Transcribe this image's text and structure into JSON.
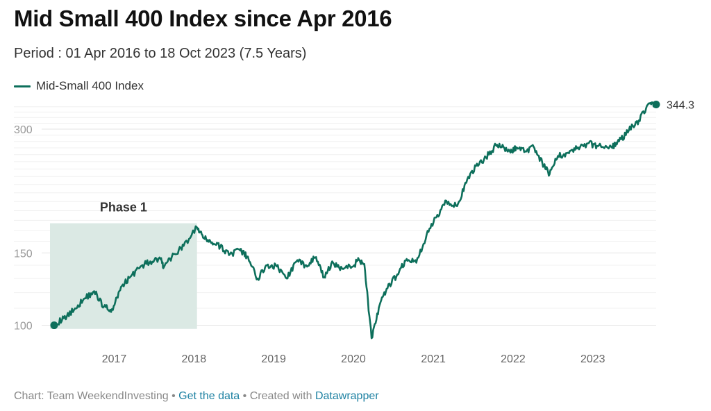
{
  "header": {
    "title": "Mid Small 400 Index since Apr 2016",
    "subtitle": "Period : 01 Apr 2016 to 18 Oct 2023 (7.5 Years)"
  },
  "footer": {
    "prefix": "Chart: Team WeekendInvesting",
    "sep1": " • ",
    "data_link": "Get the data",
    "sep2": " • Created with ",
    "tool_link": "Datawrapper"
  },
  "colors": {
    "line": "#0d6f5b",
    "phase_fill": "#dbe9e4",
    "grid": "#e6e6e6"
  },
  "chart_data": {
    "type": "line",
    "title": "Mid Small 400 Index since Apr 2016",
    "subtitle": "Period : 01 Apr 2016 to 18 Oct 2023 (7.5 Years)",
    "yscale": "log",
    "ylim": [
      92,
      345
    ],
    "xlim": [
      "2016-04-01",
      "2023-10-18"
    ],
    "y_ticks": [
      100,
      150,
      300
    ],
    "x_ticks": [
      "2017",
      "2018",
      "2019",
      "2020",
      "2021",
      "2022",
      "2023"
    ],
    "legend_position": "top-left",
    "series": [
      {
        "name": "Mid-Small 400 Index",
        "x": [
          "2016-04-01",
          "2016-05-15",
          "2016-07-01",
          "2016-08-15",
          "2016-10-01",
          "2016-11-15",
          "2016-12-26",
          "2017-02-01",
          "2017-03-15",
          "2017-05-01",
          "2017-06-15",
          "2017-08-01",
          "2017-08-15",
          "2017-10-01",
          "2017-11-15",
          "2018-01-15",
          "2018-02-15",
          "2018-03-25",
          "2018-05-01",
          "2018-06-15",
          "2018-08-01",
          "2018-08-31",
          "2018-10-20",
          "2018-12-01",
          "2019-01-15",
          "2019-03-01",
          "2019-04-15",
          "2019-05-30",
          "2019-07-10",
          "2019-08-20",
          "2019-09-30",
          "2019-11-15",
          "2020-01-05",
          "2020-01-25",
          "2020-02-20",
          "2020-03-24",
          "2020-04-30",
          "2020-06-05",
          "2020-07-20",
          "2020-09-01",
          "2020-10-15",
          "2020-12-01",
          "2021-01-15",
          "2021-03-01",
          "2021-04-20",
          "2021-06-01",
          "2021-07-15",
          "2021-08-30",
          "2021-10-15",
          "2021-11-10",
          "2021-12-20",
          "2022-01-15",
          "2022-02-25",
          "2022-04-05",
          "2022-05-15",
          "2022-06-17",
          "2022-07-25",
          "2022-09-10",
          "2022-10-20",
          "2022-12-10",
          "2023-01-20",
          "2023-03-28",
          "2023-05-01",
          "2023-06-15",
          "2023-07-31",
          "2023-09-10",
          "2023-10-18"
        ],
        "values": [
          100,
          104,
          109,
          116,
          121,
          111,
          109,
          124,
          131,
          139,
          143,
          145,
          138,
          149,
          156,
          173,
          163,
          159,
          155,
          149,
          152,
          147,
          130,
          140,
          139,
          130,
          143,
          140,
          146,
          131,
          142,
          137,
          140,
          145,
          141,
          93,
          112,
          123,
          133,
          145,
          142,
          166,
          183,
          201,
          195,
          222,
          244,
          256,
          274,
          271,
          263,
          271,
          265,
          272,
          248,
          233,
          258,
          263,
          269,
          277,
          273,
          271,
          280,
          298,
          315,
          344,
          344.3
        ]
      }
    ],
    "annotations": [
      {
        "type": "range",
        "label": "Phase 1",
        "x_start": "2016-04-01",
        "x_end": "2018-01-15",
        "y_start": 98,
        "y_end": 173
      },
      {
        "type": "end-label",
        "label": "344.3",
        "x": "2023-10-18",
        "y": 344.3
      }
    ]
  }
}
